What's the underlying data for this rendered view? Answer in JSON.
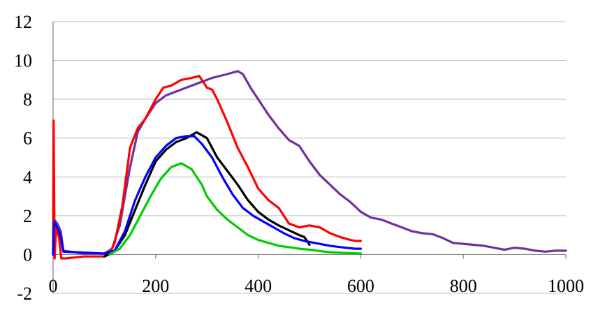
{
  "chart_data": {
    "type": "line",
    "title": "",
    "xlabel": "",
    "ylabel": "",
    "xlim": [
      0,
      1000
    ],
    "ylim": [
      -2,
      12
    ],
    "x_ticks": [
      0,
      200,
      400,
      600,
      800,
      1000
    ],
    "y_ticks": [
      -2,
      0,
      2,
      4,
      6,
      8,
      10,
      12
    ],
    "x_tick_labels": [
      "0",
      "200",
      "400",
      "600",
      "800",
      "1000"
    ],
    "y_tick_labels": [
      "-2",
      "0",
      "2",
      "4",
      "6",
      "8",
      "10",
      "12"
    ],
    "grid": "horizontal",
    "legend": "none",
    "series": [
      {
        "color": "#7030a0",
        "points": [
          [
            0,
            0
          ],
          [
            2,
            1.8
          ],
          [
            8,
            1.6
          ],
          [
            15,
            1.2
          ],
          [
            20,
            0.2
          ],
          [
            60,
            0.05
          ],
          [
            100,
            0.05
          ],
          [
            115,
            0.3
          ],
          [
            130,
            1.5
          ],
          [
            150,
            4.5
          ],
          [
            165,
            6.3
          ],
          [
            180,
            7.0
          ],
          [
            200,
            7.8
          ],
          [
            220,
            8.2
          ],
          [
            250,
            8.5
          ],
          [
            280,
            8.8
          ],
          [
            310,
            9.1
          ],
          [
            340,
            9.3
          ],
          [
            360,
            9.45
          ],
          [
            370,
            9.3
          ],
          [
            385,
            8.6
          ],
          [
            400,
            8.0
          ],
          [
            420,
            7.2
          ],
          [
            440,
            6.5
          ],
          [
            460,
            5.9
          ],
          [
            480,
            5.6
          ],
          [
            500,
            4.8
          ],
          [
            520,
            4.1
          ],
          [
            540,
            3.6
          ],
          [
            560,
            3.1
          ],
          [
            580,
            2.7
          ],
          [
            600,
            2.2
          ],
          [
            620,
            1.9
          ],
          [
            640,
            1.8
          ],
          [
            660,
            1.6
          ],
          [
            680,
            1.4
          ],
          [
            700,
            1.2
          ],
          [
            720,
            1.1
          ],
          [
            740,
            1.05
          ],
          [
            760,
            0.85
          ],
          [
            780,
            0.6
          ],
          [
            800,
            0.55
          ],
          [
            820,
            0.5
          ],
          [
            840,
            0.45
          ],
          [
            860,
            0.35
          ],
          [
            880,
            0.25
          ],
          [
            900,
            0.35
          ],
          [
            920,
            0.3
          ],
          [
            940,
            0.2
          ],
          [
            960,
            0.15
          ],
          [
            980,
            0.2
          ],
          [
            1000,
            0.2
          ]
        ]
      },
      {
        "color": "#ff0000",
        "points": [
          [
            0,
            0
          ],
          [
            1,
            6.9
          ],
          [
            3,
            -0.2
          ],
          [
            6,
            1.5
          ],
          [
            12,
            0.8
          ],
          [
            16,
            -0.2
          ],
          [
            25,
            -0.2
          ],
          [
            60,
            -0.1
          ],
          [
            100,
            -0.1
          ],
          [
            110,
            0.0
          ],
          [
            120,
            0.6
          ],
          [
            135,
            2.5
          ],
          [
            150,
            5.5
          ],
          [
            165,
            6.5
          ],
          [
            180,
            7.0
          ],
          [
            200,
            8.0
          ],
          [
            215,
            8.6
          ],
          [
            230,
            8.7
          ],
          [
            250,
            9.0
          ],
          [
            270,
            9.1
          ],
          [
            285,
            9.2
          ],
          [
            300,
            8.6
          ],
          [
            310,
            8.5
          ],
          [
            320,
            8.0
          ],
          [
            340,
            6.8
          ],
          [
            360,
            5.5
          ],
          [
            380,
            4.5
          ],
          [
            400,
            3.4
          ],
          [
            420,
            2.8
          ],
          [
            440,
            2.4
          ],
          [
            460,
            1.6
          ],
          [
            480,
            1.4
          ],
          [
            500,
            1.5
          ],
          [
            520,
            1.4
          ],
          [
            540,
            1.1
          ],
          [
            560,
            0.9
          ],
          [
            580,
            0.75
          ],
          [
            590,
            0.7
          ],
          [
            600,
            0.7
          ]
        ]
      },
      {
        "color": "#000000",
        "points": [
          [
            100,
            -0.1
          ],
          [
            120,
            0.2
          ],
          [
            140,
            1.0
          ],
          [
            160,
            2.3
          ],
          [
            180,
            3.6
          ],
          [
            200,
            4.8
          ],
          [
            220,
            5.4
          ],
          [
            240,
            5.8
          ],
          [
            260,
            6.0
          ],
          [
            280,
            6.3
          ],
          [
            300,
            6.0
          ],
          [
            320,
            5.0
          ],
          [
            340,
            4.3
          ],
          [
            360,
            3.6
          ],
          [
            380,
            2.8
          ],
          [
            400,
            2.2
          ],
          [
            420,
            1.8
          ],
          [
            440,
            1.5
          ],
          [
            460,
            1.25
          ],
          [
            480,
            1.0
          ],
          [
            490,
            0.9
          ],
          [
            500,
            0.5
          ]
        ]
      },
      {
        "color": "#0000ff",
        "points": [
          [
            0,
            0
          ],
          [
            2,
            1.7
          ],
          [
            10,
            1.3
          ],
          [
            15,
            0.9
          ],
          [
            20,
            0.15
          ],
          [
            60,
            0.1
          ],
          [
            100,
            0.05
          ],
          [
            120,
            0.2
          ],
          [
            140,
            1.2
          ],
          [
            160,
            2.8
          ],
          [
            180,
            4.0
          ],
          [
            200,
            5.0
          ],
          [
            220,
            5.6
          ],
          [
            240,
            6.0
          ],
          [
            260,
            6.1
          ],
          [
            275,
            6.1
          ],
          [
            290,
            5.7
          ],
          [
            310,
            5.0
          ],
          [
            330,
            4.0
          ],
          [
            350,
            3.1
          ],
          [
            370,
            2.4
          ],
          [
            390,
            2.0
          ],
          [
            410,
            1.7
          ],
          [
            430,
            1.4
          ],
          [
            450,
            1.1
          ],
          [
            470,
            0.85
          ],
          [
            490,
            0.7
          ],
          [
            510,
            0.6
          ],
          [
            540,
            0.45
          ],
          [
            570,
            0.35
          ],
          [
            590,
            0.3
          ],
          [
            600,
            0.3
          ]
        ]
      },
      {
        "color": "#00cc00",
        "points": [
          [
            110,
            0.0
          ],
          [
            130,
            0.3
          ],
          [
            150,
            1.0
          ],
          [
            170,
            2.0
          ],
          [
            190,
            3.0
          ],
          [
            210,
            3.9
          ],
          [
            230,
            4.5
          ],
          [
            250,
            4.7
          ],
          [
            270,
            4.4
          ],
          [
            290,
            3.6
          ],
          [
            300,
            3.0
          ],
          [
            320,
            2.3
          ],
          [
            340,
            1.8
          ],
          [
            360,
            1.4
          ],
          [
            380,
            1.0
          ],
          [
            400,
            0.75
          ],
          [
            420,
            0.6
          ],
          [
            440,
            0.45
          ],
          [
            460,
            0.38
          ],
          [
            480,
            0.3
          ],
          [
            500,
            0.25
          ],
          [
            520,
            0.18
          ],
          [
            540,
            0.12
          ],
          [
            570,
            0.08
          ],
          [
            600,
            0.05
          ]
        ]
      }
    ]
  }
}
